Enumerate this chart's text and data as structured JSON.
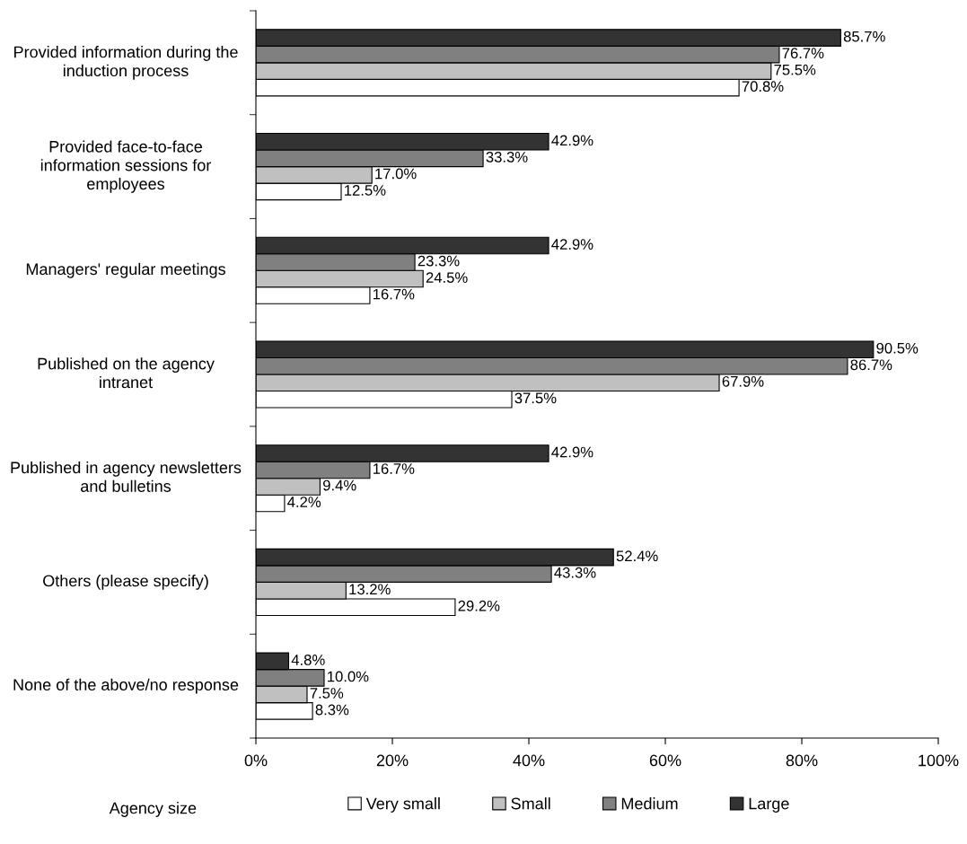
{
  "chart_data": {
    "type": "bar",
    "orientation": "horizontal",
    "categories": [
      "Provided information during the induction process",
      "Provided face-to-face information sessions for employees",
      "Managers' regular meetings",
      "Published on the agency intranet",
      "Published in agency newsletters and bulletins",
      "Others (please specify)",
      "None of the above/no response"
    ],
    "series": [
      {
        "name": "Very small",
        "color": "#ffffff",
        "values": [
          70.8,
          12.5,
          16.7,
          37.5,
          4.2,
          29.2,
          8.3
        ],
        "value_labels": [
          "70.8%",
          "12.5%",
          "16.7%",
          "37.5%",
          "4.2%",
          "29.2%",
          "8.3%"
        ]
      },
      {
        "name": "Small",
        "color": "#c0c0c0",
        "values": [
          75.5,
          17.0,
          24.5,
          67.9,
          9.4,
          13.2,
          7.5
        ],
        "value_labels": [
          "75.5%",
          "17.0%",
          "24.5%",
          "67.9%",
          "9.4%",
          "13.2%",
          "7.5%"
        ]
      },
      {
        "name": "Medium",
        "color": "#808080",
        "values": [
          76.7,
          33.3,
          23.3,
          86.7,
          16.7,
          43.3,
          10.0
        ],
        "value_labels": [
          "76.7%",
          "33.3%",
          "23.3%",
          "86.7%",
          "16.7%",
          "43.3%",
          "10.0%"
        ]
      },
      {
        "name": "Large",
        "color": "#333333",
        "values": [
          85.7,
          42.9,
          42.9,
          90.5,
          42.9,
          52.4,
          4.8
        ],
        "value_labels": [
          "85.7%",
          "42.9%",
          "42.9%",
          "90.5%",
          "42.9%",
          "52.4%",
          "4.8%"
        ]
      }
    ],
    "xlim": [
      0,
      100
    ],
    "xticks": [
      {
        "value": 0,
        "label": "0%"
      },
      {
        "value": 20,
        "label": "20%"
      },
      {
        "value": 40,
        "label": "40%"
      },
      {
        "value": 60,
        "label": "60%"
      },
      {
        "value": 80,
        "label": "80%"
      },
      {
        "value": 100,
        "label": "100%"
      }
    ],
    "legend_title": "Agency size",
    "legend": "bottom",
    "grid": false
  }
}
